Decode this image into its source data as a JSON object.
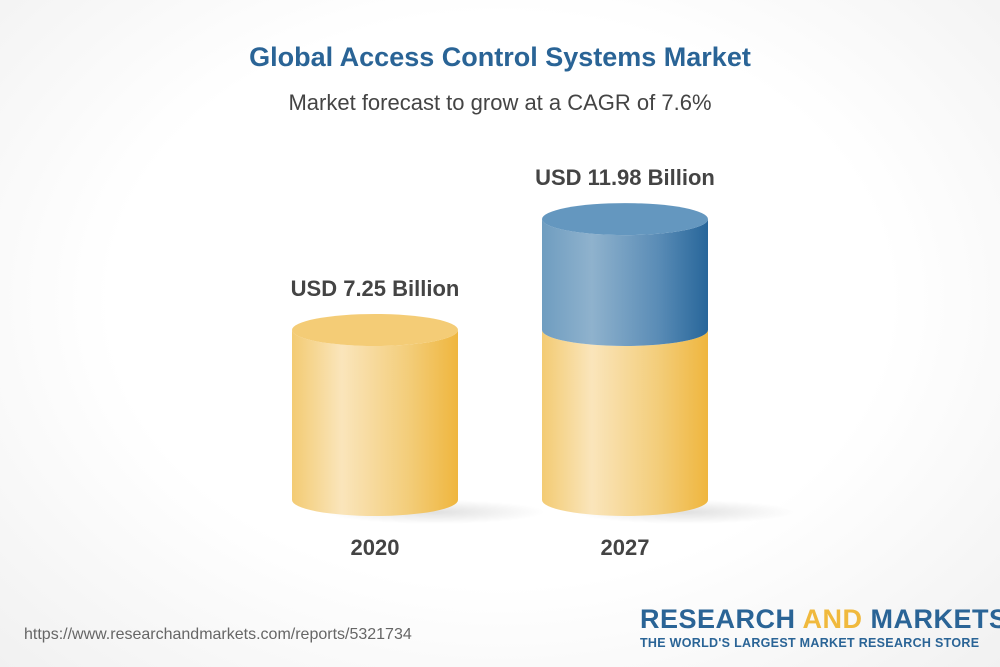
{
  "chart_data": {
    "type": "bar",
    "style": "3d-cylinder",
    "title": "Global Access Control Systems Market",
    "subtitle": "Market forecast to grow at a CAGR of 7.6%",
    "categories": [
      "2020",
      "2027"
    ],
    "values": [
      7.25,
      11.98
    ],
    "unit": "USD Billion",
    "data_labels": [
      "USD 7.25 Billion",
      "USD 11.98 Billion"
    ],
    "colors": {
      "base": "#f0b93d",
      "growth": "#2a6496"
    },
    "grid": false
  },
  "footer": {
    "url": "https://www.researchandmarkets.com/reports/5321734",
    "logo": {
      "part1": "RESEARCH ",
      "part2": "AND",
      "part3": " MARKETS",
      "tagline": "THE WORLD'S LARGEST MARKET RESEARCH STORE"
    }
  }
}
